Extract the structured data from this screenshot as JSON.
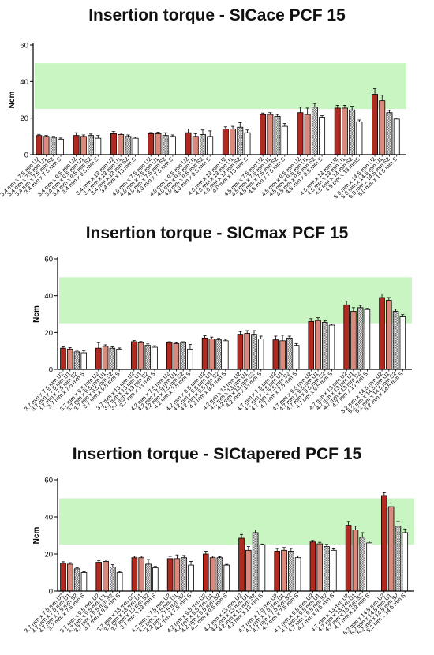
{
  "colors": {
    "U2": "#b22a1f",
    "U1": "#d98a7c",
    "S2": "#c4c4c4",
    "S": "#ffffff",
    "band": "#c9f5c2",
    "axis": "#000000"
  },
  "pattern_series": "S2",
  "chart_data": [
    {
      "type": "bar",
      "title": "Insertion torque - SICace PCF 15",
      "ylabel": "Ncm",
      "ylim": [
        0,
        60
      ],
      "yticks": [
        0,
        20,
        40,
        60
      ],
      "band": [
        25,
        50
      ],
      "categories": [
        "3.4 mm x 7.5 mm U2",
        "3.4 mm x 7.5 mm U1",
        "3.4 mm x 7.5 mm S2",
        "3.4 mm x 7.5 mm S",
        "3.4 mm x 9.5 mm U2",
        "3.4 mm x 9.5 mm U1",
        "3.4 mm x 9.5 mm S2",
        "3.4 mm x 9.5 mm S",
        "3.4 mm x 13 mm U2",
        "3.4 mm x 13 mm U1",
        "3.4 mm x 13 mm S2",
        "3.4 mm x 13 mm S",
        "4.0 mm x 7.5 mm U2",
        "4.0 mm x 7.5 mm U1",
        "4.0 mm x 7.5 mm S2",
        "4.0 mm x 7.5 mm S",
        "4.0 mm x 9.5 mm U2",
        "4.0 mm x 9.5 mm U1",
        "4.0 mm x 9.5 mm S2",
        "4.0 mm x 9.5 mm S",
        "4.0 mm x 13 mm U2",
        "4.0 mm x 13 mm U1",
        "4.0 mm x 13 mm S2",
        "4.0 mm x 13 mm S",
        "4.5 mm x 7.5 mm U2",
        "4.5 mm x 7.5 mm U1",
        "4.5 mm x 7.5 mm S2",
        "4.5 mm x 7.5 mm S",
        "4.5 mm x 9.5 mm U2",
        "4.5 mm x 9.5 mm U1",
        "4.5 mm x 9.5 mm S2",
        "4.5 mm x 9.5 mm S",
        "4.5 mm x 13 mm U2",
        "4.5 mm x 13 mm U1",
        "4.5 mm x 13 mm S2",
        "4.5 mm x 13 mmS",
        "5.0 mm x 14.5 mm U2",
        "5.0 mm x 14.5 mm U1",
        "5.0 mm x 14.5 mm S2",
        "5.0 mm x 14.5 mm S"
      ],
      "values": [
        10.5,
        10,
        9.5,
        8.5,
        10.5,
        10,
        10.5,
        9,
        11.5,
        11,
        10,
        9,
        11.5,
        11.5,
        10.5,
        10,
        12,
        10,
        11,
        10,
        14,
        14,
        15,
        12,
        22,
        22,
        21,
        15.5,
        23,
        22,
        26,
        20.5,
        25.5,
        25.5,
        24.5,
        18,
        33,
        29.5,
        23,
        19.5
      ],
      "errors": [
        0.6,
        0.5,
        0.5,
        0.6,
        1.5,
        0.8,
        0.8,
        1.5,
        1.2,
        0.8,
        0.8,
        0.6,
        0.6,
        0.8,
        1.5,
        0.8,
        2,
        1.5,
        2.5,
        3,
        1.2,
        1.5,
        2.5,
        1.5,
        0.8,
        1,
        1,
        1.5,
        3,
        3.5,
        2,
        0.8,
        1.5,
        1.5,
        2,
        1,
        3,
        3,
        1.2,
        0.6
      ]
    },
    {
      "type": "bar",
      "title": "Insertion torque - SICmax PCF 15",
      "ylabel": "Ncm",
      "ylim": [
        0,
        60
      ],
      "yticks": [
        0,
        20,
        40,
        60
      ],
      "band": [
        25,
        50
      ],
      "categories": [
        "3.7 mm x 7.5 mm U2",
        "3.7 mm x 7.5 mm U1",
        "3.7 mm x 7.5 mm S2",
        "3.7 mm x 7.5 mm S",
        "3.7 mm x 9.5 mm U2",
        "3.7 mm x 9.5 mm U1",
        "3.7 mm x 9.5 mm S2",
        "3.7 mm x 9.5 mm S",
        "3.7 mm x 13 mm U2",
        "3.7 mm x 13 mm U1",
        "3.7 mm x 13 mm S2",
        "3.7 mm x 13 mm S",
        "4.2 mm x 7.5 mm U2",
        "4.2 mm x 7.5 mm U1",
        "4.2 mm x 7.5 mm S2",
        "4.2 mm x 7.5 mm S",
        "4.2 mm x 9.5 mm U2",
        "4.2 mm x 9.5 mm U1",
        "4.2 mm x 9.5 mm S2",
        "4.2 mm x 9.5 mm S",
        "4.2 mm x 13 mm U2",
        "4.2 mm x 13 mm U1",
        "4.2 mm x 13 mm S2",
        "4.2 mm x 13 mm S",
        "4.7 mm x 7.5 mm U2",
        "4.7 mm x 7.5 mm U1",
        "4.7 mm x 7.5 mm S2",
        "4.7 mm x 7.5 mm S",
        "4.7 mm x 9.5 mm U2",
        "4.7 mm x 9.5 mm U1",
        "4.7 mm x 9.5 mm S2",
        "4.7 mm x 9.5 mm S",
        "4.7 mm x 13 mm U2",
        "4.7 mm x 13 mm U1",
        "4.7 mm x 13 mm S2",
        "4.7 mm x 13 mm S",
        "5.2 mm x 14.5 mm U2",
        "5.2 mm x 14.5 mm U1",
        "5.2 mm x 14.5 mm S2",
        "5.2 mm x 14.5 mm S"
      ],
      "values": [
        11.5,
        11,
        9.5,
        9,
        11.5,
        12.5,
        11.5,
        11,
        15,
        14.5,
        13,
        12,
        14.5,
        14,
        14.5,
        11,
        17,
        16.5,
        16,
        15.5,
        19,
        19.5,
        19,
        16.5,
        16,
        15.5,
        17,
        13,
        26,
        26.5,
        25.5,
        24,
        35,
        31.5,
        33.5,
        32.5,
        39,
        37.5,
        31.5,
        28.5
      ],
      "errors": [
        0.8,
        0.8,
        0.8,
        1,
        3,
        0.8,
        0.8,
        0.6,
        0.6,
        0.6,
        0.8,
        0.8,
        0.5,
        0.5,
        0.5,
        2.5,
        1.2,
        1,
        0.8,
        0.8,
        1.5,
        1.5,
        2,
        1.5,
        2,
        3,
        1,
        1,
        1.5,
        1.5,
        0.8,
        0.6,
        2,
        2,
        1.2,
        0.6,
        2,
        1.5,
        1.2,
        1.2
      ]
    },
    {
      "type": "bar",
      "title": "Insertion torque - SICtapered PCF 15",
      "ylabel": "Ncm",
      "ylim": [
        0,
        60
      ],
      "yticks": [
        0,
        20,
        40,
        60
      ],
      "band": [
        25,
        50
      ],
      "categories": [
        "3.7 mm x 7.5 mm U2",
        "3.7 mm x 7.5 mm U1",
        "3.7 mm x 7.5 mm S2",
        "3.7 mm x 7.5 mm S",
        "3.7 mm x 9.5 mm U2",
        "3.7 mm x 9.5 mm U1",
        "3.7 mm x 9.5 mm S2",
        "3.7 mm x 9.5 mm S",
        "3.7 mm x 13 mm U2",
        "3.7 mm x 13 mm U1",
        "3.7 mm x 13 mm S2",
        "3.7 mm x 13 mm S",
        "4.2 mm x 7.5 mm U2",
        "4.2 mm x 7.5 mm U1",
        "4.2 mm x 7.5 mm S2",
        "4.2 mm x 7.5 mm S",
        "4.2 mm x 9.5 mm U2",
        "4.2 mm x 9.5 mm U1",
        "4.2 mm x 9.5 mm S2",
        "4.2 mm x 9.5 mm S",
        "4.2 mm x 13 mm U2",
        "4.2 mm x 13 mm U1",
        "4.2 mm x 13 mm S2",
        "4.2 mm x 13 mm S",
        "4.7 mm x 7.5 mm U2",
        "4.7 mm x 7.5 mm U1",
        "4.7 mm x 7.5 mm S2",
        "4.7 mm x 7.5 mm S",
        "4.7 mm x 9.5 mm U2",
        "4.7 mm x 9.5 mm U1",
        "4.7 mm x 9.5 mm S2",
        "4.7 mm x 9.5 mm S",
        "4.7 mm x 13 mm U2",
        "4.7 mm x 13 mm U1",
        "4.7 mm x 13 mm S2",
        "4.7 mm x 13 mm S",
        "5.2 mm x 14.5 mm U2",
        "5.2 mm x 14.5 mm U1",
        "5.2 mm x 14.5 mm S2",
        "5.2 mm x 14.5 mm S"
      ],
      "values": [
        15,
        14.5,
        12,
        10,
        15.5,
        16,
        13,
        10,
        18,
        18,
        14.5,
        12.5,
        17.5,
        17.5,
        18,
        14,
        20,
        18,
        18,
        14,
        28.5,
        22,
        31.5,
        25,
        21.5,
        22,
        21.5,
        18,
        26.5,
        25.5,
        24,
        22,
        35.5,
        33,
        29,
        26,
        51.5,
        45.5,
        35,
        31.5
      ],
      "errors": [
        0.8,
        0.8,
        0.5,
        0.4,
        0.8,
        0.8,
        1.2,
        0.6,
        0.8,
        0.8,
        2.5,
        0.8,
        1.2,
        2,
        1.2,
        2,
        1.5,
        0.8,
        0.6,
        0.4,
        2,
        2,
        1.5,
        0.4,
        1.5,
        1.5,
        1.5,
        1,
        0.8,
        0.8,
        1.2,
        0.8,
        2,
        2,
        2.5,
        1,
        1.5,
        2,
        2.5,
        2
      ]
    }
  ]
}
